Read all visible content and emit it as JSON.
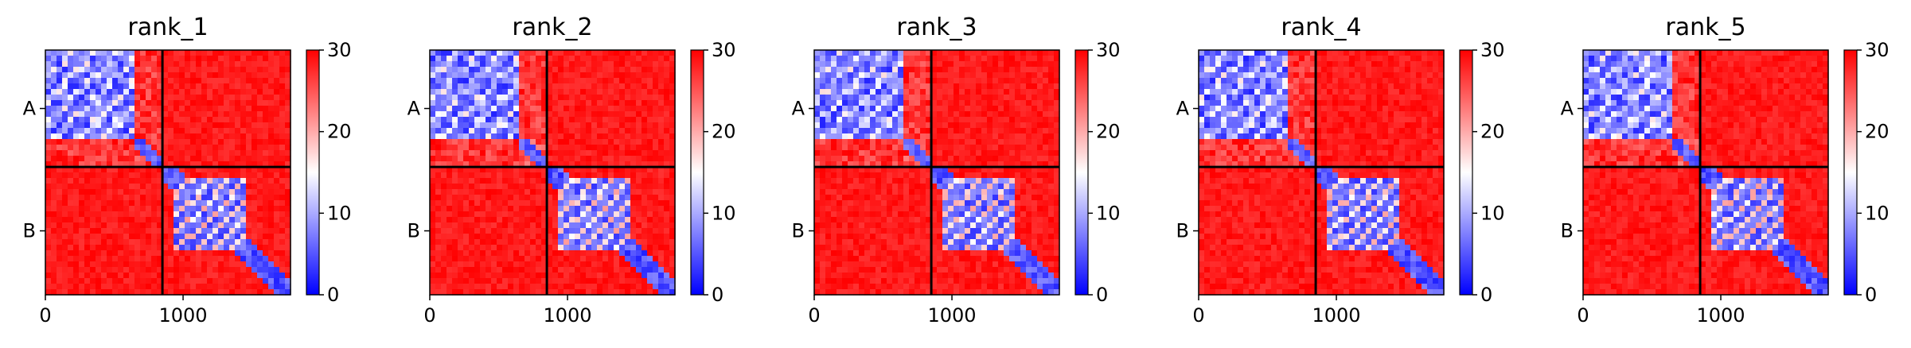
{
  "chart_data": {
    "type": "heatmap",
    "shared": {
      "chains": [
        "A",
        "B"
      ],
      "chain_boundary": 850,
      "sequence_length": 1780,
      "xticks": [
        0,
        1000
      ],
      "x_tick_labels": [
        "0",
        "1000"
      ],
      "colorbar": {
        "colormap": "bwr",
        "min": 0,
        "max": 30,
        "ticks": [
          0,
          10,
          20,
          30
        ],
        "tick_labels": [
          "0",
          "10",
          "20",
          "30"
        ]
      },
      "colors": {
        "low": "#0000ff",
        "mid": "#ffffff",
        "high": "#ff0000",
        "divider": "#000000"
      }
    },
    "panels": [
      {
        "title": "rank_1"
      },
      {
        "title": "rank_2"
      },
      {
        "title": "rank_3"
      },
      {
        "title": "rank_4"
      },
      {
        "title": "rank_5"
      }
    ]
  }
}
